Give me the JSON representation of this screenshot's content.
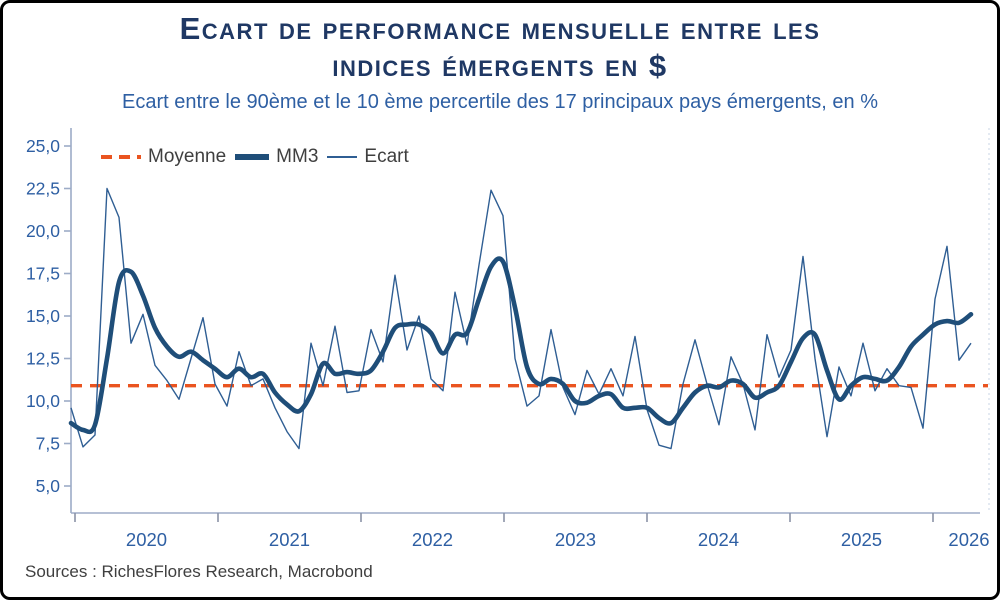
{
  "header": {
    "title_line1": "Ecart de performance mensuelle entre les",
    "title_line2": "indices émergents en $",
    "subtitle": "Ecart entre le 90ème et le 10 ème percertile des 17 principaux pays émergents, en %"
  },
  "legend": {
    "items": [
      {
        "label": "Moyenne",
        "style": "dashed",
        "color": "#ea5420"
      },
      {
        "label": "MM3",
        "style": "thick",
        "color": "#1f4e79"
      },
      {
        "label": "Ecart",
        "style": "thin",
        "color": "#2f5e93"
      }
    ]
  },
  "footer": {
    "source": "Sources : RichesFlores Research, Macrobond"
  },
  "colors": {
    "title": "#1f3864",
    "subtitle": "#2e5fa3",
    "axis_line": "#9dacc7",
    "axis_labels": "#2e5fa3",
    "mean_line": "#ea5420",
    "mm3_line": "#1f4e79",
    "ecart_line": "#2f5e93",
    "legend_text": "#3f3f3f",
    "frame_border": "#000000",
    "background": "#ffffff"
  },
  "chart_data": {
    "type": "line",
    "title": "Ecart de performance mensuelle entre les indices émergents en $",
    "subtitle": "Ecart entre le 90ème et le 10 ème percertile des 17 principaux pays émergents, en %",
    "frequency": "monthly",
    "first_point": "2020-01",
    "last_point": "2026-04",
    "grid": "off",
    "legend_position": "top-left",
    "y_axis": {
      "min": 5.0,
      "max": 25.0,
      "step": 2.5,
      "tick_labels": [
        "25,0",
        "22,5",
        "20,0",
        "17,5",
        "15,0",
        "12,5",
        "10,0",
        "7,5",
        "5,0"
      ],
      "tick_values": [
        25.0,
        22.5,
        20.0,
        17.5,
        15.0,
        12.5,
        10.0,
        7.5,
        5.0
      ]
    },
    "x_axis": {
      "tick_labels": [
        "2020",
        "2021",
        "2022",
        "2023",
        "2024",
        "2025",
        "2026"
      ],
      "tick_values": [
        2020,
        2021,
        2022,
        2023,
        2024,
        2025,
        2026
      ]
    },
    "mean": {
      "name": "Moyenne",
      "value": 10.9
    },
    "series": [
      {
        "name": "Ecart",
        "style": "thin",
        "values": [
          9.6,
          7.3,
          8.0,
          22.5,
          20.8,
          13.4,
          15.1,
          12.1,
          11.2,
          10.1,
          12.5,
          14.9,
          11.0,
          9.7,
          12.9,
          10.9,
          11.3,
          9.6,
          8.2,
          7.2,
          13.4,
          10.9,
          14.4,
          10.5,
          10.6,
          14.2,
          12.3,
          17.4,
          13.0,
          15.0,
          11.3,
          10.6,
          16.4,
          13.3,
          18.0,
          22.4,
          20.9,
          12.5,
          9.7,
          10.3,
          14.2,
          10.8,
          9.2,
          11.8,
          10.4,
          11.9,
          10.3,
          13.8,
          9.5,
          7.4,
          7.2,
          11.0,
          13.6,
          11.0,
          8.6,
          12.6,
          11.0,
          8.3,
          13.9,
          11.4,
          13.0,
          18.5,
          12.5,
          7.9,
          12.0,
          10.3,
          13.4,
          10.6,
          11.9,
          10.9,
          10.8,
          8.4,
          16.0,
          19.1,
          12.4,
          13.4
        ]
      },
      {
        "name": "MM3",
        "style": "thick",
        "values": [
          8.7,
          8.3,
          8.6,
          12.5,
          17.0,
          17.6,
          16.2,
          14.3,
          13.2,
          12.6,
          12.9,
          12.4,
          11.9,
          11.4,
          11.9,
          11.4,
          11.6,
          10.5,
          9.8,
          9.4,
          10.4,
          12.2,
          11.6,
          11.7,
          11.6,
          11.8,
          12.9,
          14.3,
          14.5,
          14.5,
          14.0,
          12.8,
          13.9,
          14.0,
          16.0,
          17.9,
          18.2,
          15.5,
          12.0,
          11.0,
          11.3,
          11.0,
          10.0,
          9.9,
          10.3,
          10.4,
          9.6,
          9.6,
          9.6,
          9.0,
          8.7,
          9.6,
          10.5,
          10.9,
          10.8,
          11.2,
          11.0,
          10.2,
          10.5,
          10.9,
          12.3,
          13.7,
          13.9,
          11.8,
          10.1,
          10.9,
          11.4,
          11.3,
          11.2,
          12.0,
          13.2,
          13.9,
          14.5,
          14.7,
          14.6,
          15.1
        ]
      }
    ]
  }
}
